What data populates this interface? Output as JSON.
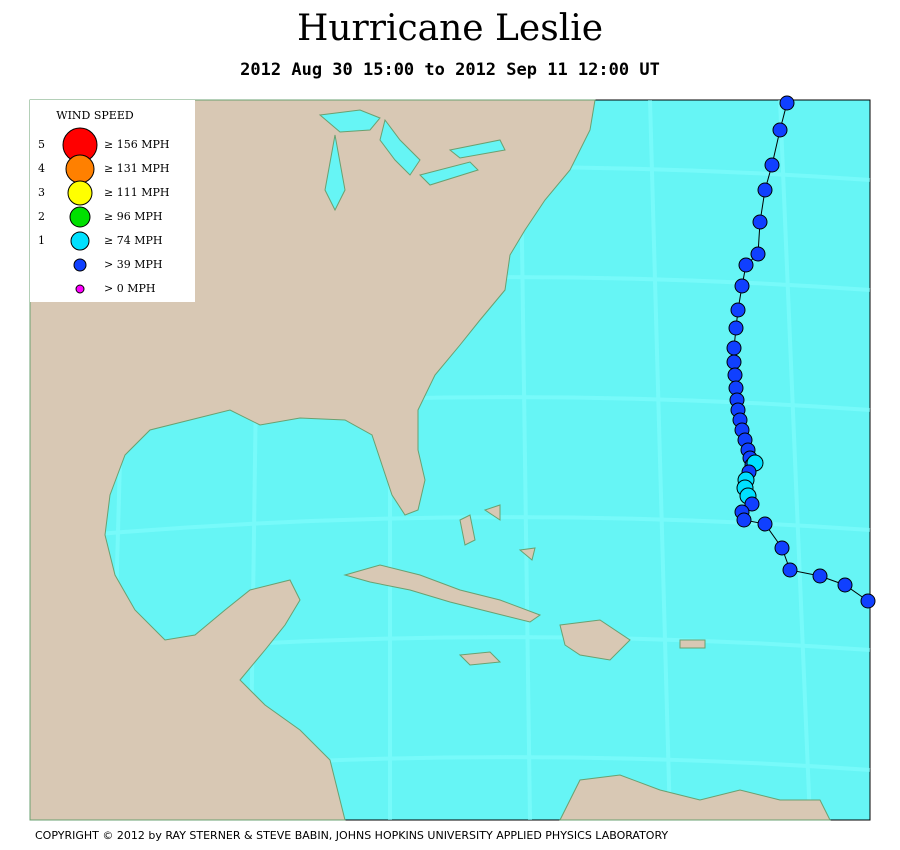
{
  "header": {
    "title": "Hurricane Leslie",
    "subtitle": "2012 Aug 30 15:00 to 2012 Sep 11 12:00 UT"
  },
  "legend": {
    "title": "WIND SPEED",
    "items": [
      {
        "category": "5",
        "label": "≥ 156 MPH",
        "color": "#ff0000"
      },
      {
        "category": "4",
        "label": "≥ 131 MPH",
        "color": "#ff8000"
      },
      {
        "category": "3",
        "label": "≥ 111 MPH",
        "color": "#ffff00"
      },
      {
        "category": "2",
        "label": "≥ 96 MPH",
        "color": "#00e000"
      },
      {
        "category": "1",
        "label": "≥ 74 MPH",
        "color": "#00e0ff"
      },
      {
        "category": null,
        "label": "> 39 MPH",
        "color": "#1040ff"
      },
      {
        "category": null,
        "label": "> 0 MPH",
        "color": "#ff00ff"
      }
    ]
  },
  "footer": {
    "copyright": "COPYRIGHT © 2012 by RAY STERNER & STEVE BABIN, JOHNS HOPKINS UNIVERSITY APPLIED PHYSICS LABORATORY"
  }
}
